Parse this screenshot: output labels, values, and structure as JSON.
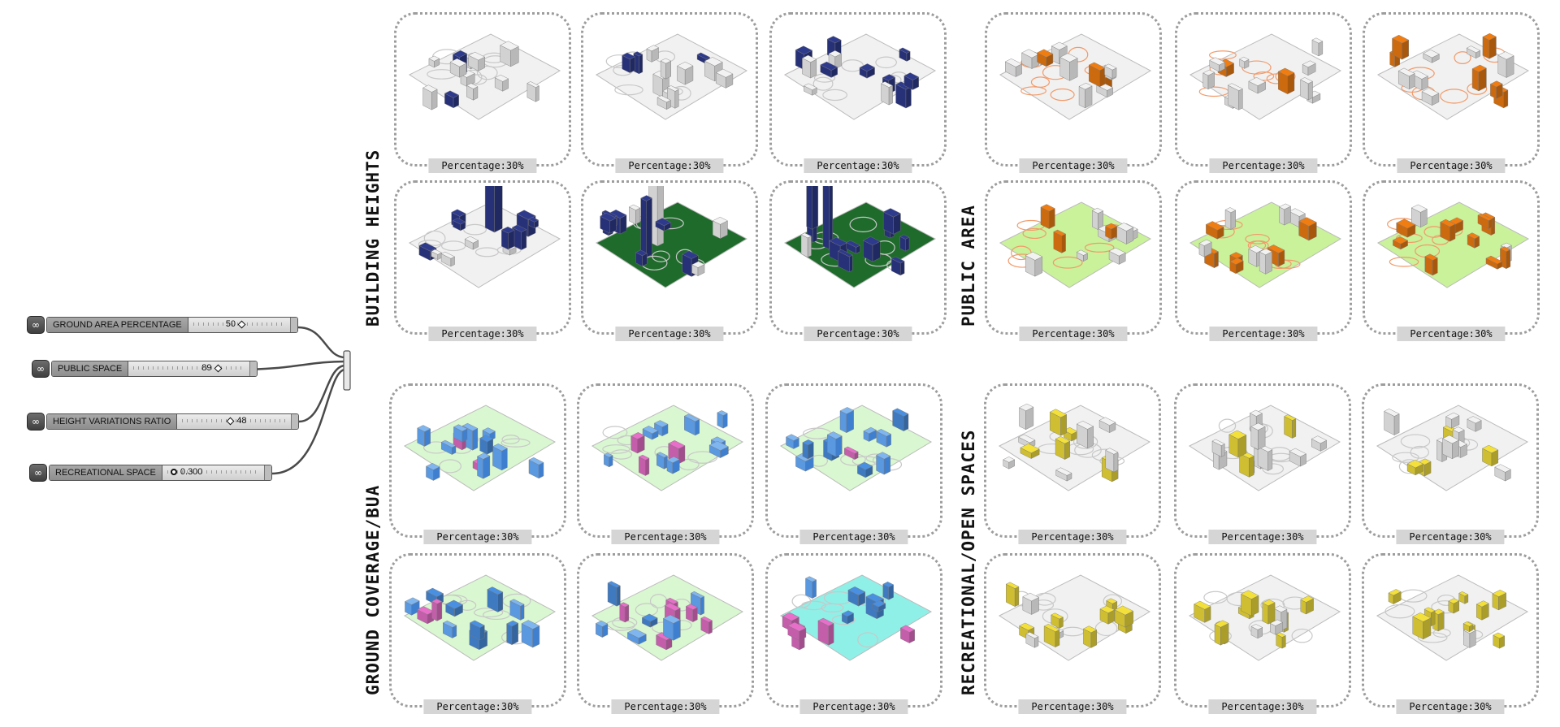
{
  "sliders": [
    {
      "label": "GROUND AREA PERCENTAGE",
      "value": "50",
      "grip": "diamond"
    },
    {
      "label": "PUBLIC SPACE",
      "value": "89",
      "grip": "diamond"
    },
    {
      "label": "HEIGHT VARIATIONS RATIO",
      "value": "48",
      "grip": "diamond"
    },
    {
      "label": "RECREATIONAL SPACE",
      "value": "0.300",
      "grip": "circle"
    }
  ],
  "sections": {
    "building_heights": "BUILDING HEIGHTS",
    "public_area": "PUBLIC AREA",
    "ground_coverage": "GROUND COVERAGE/BUA",
    "recreational": "RECREATIONAL/OPEN SPACES"
  },
  "panel_label": "Percentage:30%",
  "colors": {
    "building_heights": "#2e3a8c",
    "public_area": "#f07d12",
    "ground_coverage": "#4a90e2",
    "recreational": "#f3e03a",
    "green": "#8fe27a",
    "cyan": "#8ff0e8",
    "pink": "#e76fc9"
  }
}
